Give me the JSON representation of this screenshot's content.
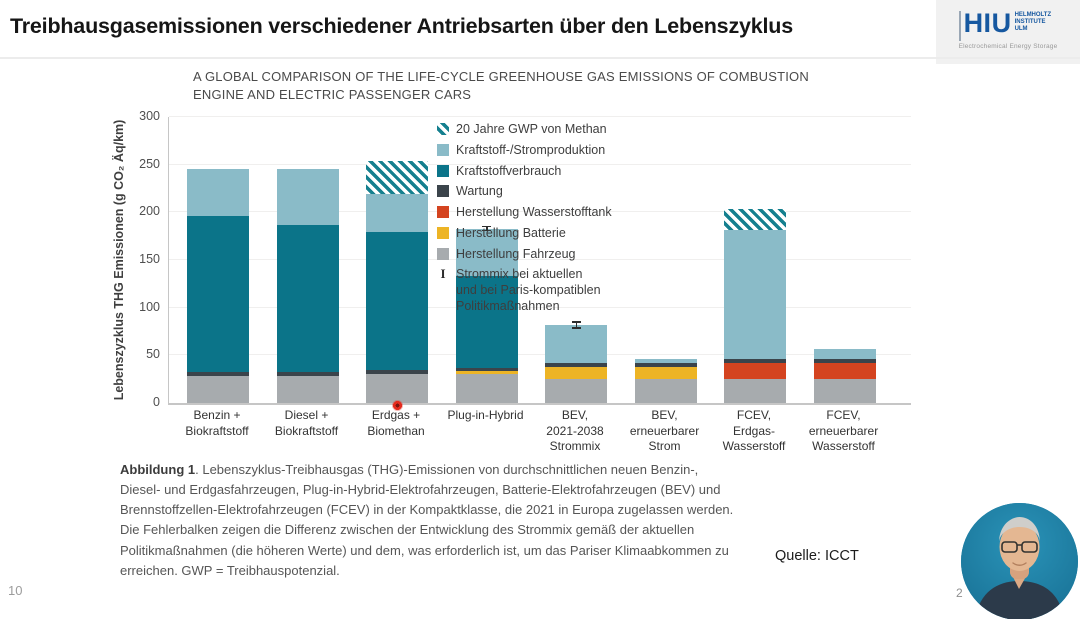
{
  "header": {
    "title": "Treibhausgasemissionen verschiedener Antriebsarten über den Lebenszyklus",
    "logo": {
      "acronym": "HIU",
      "institute": "HELMHOLTZ\nINSTITUTE\nULM",
      "tagline": "Electrochemical Energy Storage"
    }
  },
  "chart_data": {
    "type": "bar",
    "stacked": true,
    "title": "A GLOBAL COMPARISON OF THE LIFE-CYCLE GREENHOUSE GAS EMISSIONS OF COMBUSTION ENGINE AND ELECTRIC PASSENGER CARS",
    "xlabel": "",
    "ylabel": "Lebenszyzklus THG Emissionen (g CO₂ Äq/km)",
    "ylim": [
      0,
      300
    ],
    "ytick_step": 50,
    "grid": true,
    "legend_position": "top-right-inside",
    "categories": [
      "Benzin +\nBiokraftstoff",
      "Diesel +\nBiokraftstoff",
      "Erdgas +\nBiomethan",
      "Plug-in-Hybrid",
      "BEV,\n2021-2038\nStrommix",
      "BEV,\nerneuerbarer\nStrom",
      "FCEV,\nErdgas-\nWasserstoff",
      "FCEV,\nerneuerbarer\nWasserstoff"
    ],
    "series": [
      {
        "name": "Herstellung Fahrzeug",
        "color": "#a7abae",
        "values": [
          28,
          28,
          30,
          30,
          25,
          25,
          25,
          25
        ]
      },
      {
        "name": "Herstellung Batterie",
        "color": "#edb425",
        "values": [
          0,
          0,
          0,
          4,
          13,
          13,
          0,
          0
        ]
      },
      {
        "name": "Herstellung Wasserstofftank",
        "color": "#d44420",
        "values": [
          0,
          0,
          0,
          0,
          0,
          0,
          17,
          17
        ]
      },
      {
        "name": "Wartung",
        "color": "#3b444b",
        "values": [
          5,
          5,
          5,
          3,
          4,
          4,
          4,
          4
        ]
      },
      {
        "name": "Kraftstoffverbrauch",
        "color": "#0b7489",
        "values": [
          163,
          154,
          144,
          96,
          0,
          0,
          0,
          0
        ]
      },
      {
        "name": "Kraftstoff-/Stromproduktion",
        "color": "#8abbc8",
        "values": [
          49,
          58,
          40,
          50,
          40,
          4,
          135,
          11
        ]
      },
      {
        "name": "20 Jahre GWP von Methan",
        "color": "hatch",
        "values": [
          0,
          0,
          35,
          0,
          0,
          0,
          22,
          0
        ]
      }
    ],
    "totals": [
      245,
      245,
      254,
      183,
      82,
      46,
      203,
      57
    ],
    "error_bars": [
      {
        "category_index": 3,
        "at": 183,
        "plus_minus": 3
      },
      {
        "category_index": 4,
        "at": 82,
        "plus_minus": 4
      }
    ],
    "legend": [
      {
        "swatch": "hatch",
        "color": "#15808f",
        "label": "20 Jahre GWP von Methan"
      },
      {
        "swatch": "color",
        "color": "#8abbc8",
        "label": "Kraftstoff-/Stromproduktion"
      },
      {
        "swatch": "color",
        "color": "#0b7489",
        "label": "Kraftstoffverbrauch"
      },
      {
        "swatch": "color",
        "color": "#3b444b",
        "label": "Wartung"
      },
      {
        "swatch": "color",
        "color": "#d44420",
        "label": "Herstellung Wasserstofftank"
      },
      {
        "swatch": "color",
        "color": "#edb425",
        "label": "Herstellung Batterie"
      },
      {
        "swatch": "color",
        "color": "#a7abae",
        "label": "Herstellung Fahrzeug"
      },
      {
        "swatch": "errorbar",
        "color": "#2d2d2d",
        "label": "Strommix bei aktuellen\nund bei Paris-kompatiblen\nPolitikmaßnahmen"
      }
    ]
  },
  "caption": {
    "bold": "Abbildung 1",
    "text": ". Lebenszyklus-Treibhausgas (THG)-Emissionen von durchschnittlichen neuen Benzin-, Diesel- und Erdgasfahrzeugen, Plug-in-Hybrid-Elektrofahrzeugen, Batterie-Elektrofahrzeugen (BEV) und Brennstoffzellen-Elektrofahrzeugen (FCEV) in der Kompaktklasse, die 2021 in Europa zugelassen werden. Die Fehlerbalken zeigen die Differenz zwischen der Entwicklung des Strommix gemäß der aktuellen Politikmaßnahmen (die höheren Werte) und dem, was erforderlich ist, um das Pariser Klimaabkommen zu erreichen. GWP = Treibhauspotenzial."
  },
  "source": "Quelle: ICCT",
  "page_number": "10",
  "slide_number": "2"
}
